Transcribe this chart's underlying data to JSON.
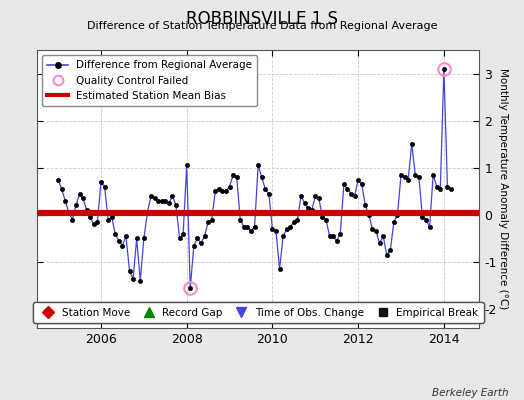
{
  "title": "ROBBINSVILLE 1 S",
  "subtitle": "Difference of Station Temperature Data from Regional Average",
  "ylabel": "Monthly Temperature Anomaly Difference (°C)",
  "bias_value": 0.05,
  "ylim": [
    -2.4,
    3.5
  ],
  "xlim": [
    2004.5,
    2014.83
  ],
  "xticks": [
    2006,
    2008,
    2010,
    2012,
    2014
  ],
  "yticks": [
    -2,
    -1,
    0,
    1,
    2,
    3
  ],
  "bg_color": "#e8e8e8",
  "plot_bg_color": "#ffffff",
  "line_color": "#4444dd",
  "marker_color": "#000000",
  "bias_color": "#cc0000",
  "qc_fail_color": "#ff88cc",
  "watermark": "Berkeley Earth",
  "monthly_data": [
    [
      2005.0,
      0.75
    ],
    [
      2005.083,
      0.55
    ],
    [
      2005.167,
      0.3
    ],
    [
      2005.25,
      0.05
    ],
    [
      2005.333,
      -0.1
    ],
    [
      2005.417,
      0.2
    ],
    [
      2005.5,
      0.45
    ],
    [
      2005.583,
      0.35
    ],
    [
      2005.667,
      0.1
    ],
    [
      2005.75,
      -0.05
    ],
    [
      2005.833,
      -0.2
    ],
    [
      2005.917,
      -0.15
    ],
    [
      2006.0,
      0.7
    ],
    [
      2006.083,
      0.6
    ],
    [
      2006.167,
      -0.1
    ],
    [
      2006.25,
      -0.05
    ],
    [
      2006.333,
      -0.4
    ],
    [
      2006.417,
      -0.55
    ],
    [
      2006.5,
      -0.65
    ],
    [
      2006.583,
      -0.45
    ],
    [
      2006.667,
      -1.2
    ],
    [
      2006.75,
      -1.35
    ],
    [
      2006.833,
      -0.5
    ],
    [
      2006.917,
      -1.4
    ],
    [
      2007.0,
      -0.5
    ],
    [
      2007.083,
      0.05
    ],
    [
      2007.167,
      0.4
    ],
    [
      2007.25,
      0.35
    ],
    [
      2007.333,
      0.3
    ],
    [
      2007.417,
      0.3
    ],
    [
      2007.5,
      0.3
    ],
    [
      2007.583,
      0.25
    ],
    [
      2007.667,
      0.4
    ],
    [
      2007.75,
      0.2
    ],
    [
      2007.833,
      -0.5
    ],
    [
      2007.917,
      -0.4
    ],
    [
      2008.0,
      1.05
    ],
    [
      2008.083,
      -1.55
    ],
    [
      2008.167,
      -0.65
    ],
    [
      2008.25,
      -0.5
    ],
    [
      2008.333,
      -0.6
    ],
    [
      2008.417,
      -0.45
    ],
    [
      2008.5,
      -0.15
    ],
    [
      2008.583,
      -0.1
    ],
    [
      2008.667,
      0.5
    ],
    [
      2008.75,
      0.55
    ],
    [
      2008.833,
      0.5
    ],
    [
      2008.917,
      0.5
    ],
    [
      2009.0,
      0.6
    ],
    [
      2009.083,
      0.85
    ],
    [
      2009.167,
      0.8
    ],
    [
      2009.25,
      -0.1
    ],
    [
      2009.333,
      -0.25
    ],
    [
      2009.417,
      -0.25
    ],
    [
      2009.5,
      -0.35
    ],
    [
      2009.583,
      -0.25
    ],
    [
      2009.667,
      1.05
    ],
    [
      2009.75,
      0.8
    ],
    [
      2009.833,
      0.55
    ],
    [
      2009.917,
      0.45
    ],
    [
      2010.0,
      -0.3
    ],
    [
      2010.083,
      -0.35
    ],
    [
      2010.167,
      -1.15
    ],
    [
      2010.25,
      -0.45
    ],
    [
      2010.333,
      -0.3
    ],
    [
      2010.417,
      -0.25
    ],
    [
      2010.5,
      -0.15
    ],
    [
      2010.583,
      -0.1
    ],
    [
      2010.667,
      0.4
    ],
    [
      2010.75,
      0.25
    ],
    [
      2010.833,
      0.15
    ],
    [
      2010.917,
      0.1
    ],
    [
      2011.0,
      0.4
    ],
    [
      2011.083,
      0.35
    ],
    [
      2011.167,
      -0.05
    ],
    [
      2011.25,
      -0.1
    ],
    [
      2011.333,
      -0.45
    ],
    [
      2011.417,
      -0.45
    ],
    [
      2011.5,
      -0.55
    ],
    [
      2011.583,
      -0.4
    ],
    [
      2011.667,
      0.65
    ],
    [
      2011.75,
      0.55
    ],
    [
      2011.833,
      0.45
    ],
    [
      2011.917,
      0.4
    ],
    [
      2012.0,
      0.75
    ],
    [
      2012.083,
      0.65
    ],
    [
      2012.167,
      0.2
    ],
    [
      2012.25,
      0.0
    ],
    [
      2012.333,
      -0.3
    ],
    [
      2012.417,
      -0.35
    ],
    [
      2012.5,
      -0.6
    ],
    [
      2012.583,
      -0.45
    ],
    [
      2012.667,
      -0.85
    ],
    [
      2012.75,
      -0.75
    ],
    [
      2012.833,
      -0.15
    ],
    [
      2012.917,
      0.0
    ],
    [
      2013.0,
      0.85
    ],
    [
      2013.083,
      0.8
    ],
    [
      2013.167,
      0.75
    ],
    [
      2013.25,
      1.5
    ],
    [
      2013.333,
      0.85
    ],
    [
      2013.417,
      0.8
    ],
    [
      2013.5,
      -0.05
    ],
    [
      2013.583,
      -0.1
    ],
    [
      2013.667,
      -0.25
    ],
    [
      2013.75,
      0.85
    ],
    [
      2013.833,
      0.6
    ],
    [
      2013.917,
      0.55
    ],
    [
      2014.0,
      3.1
    ],
    [
      2014.083,
      0.6
    ],
    [
      2014.167,
      0.55
    ]
  ],
  "qc_fail_points": [
    [
      2008.083,
      -1.55
    ],
    [
      2014.0,
      3.1
    ]
  ],
  "legend1_items": [
    {
      "label": "Difference from Regional Average",
      "color": "#4444dd",
      "type": "line_marker"
    },
    {
      "label": "Quality Control Failed",
      "color": "#ff88cc",
      "type": "circle_open"
    },
    {
      "label": "Estimated Station Mean Bias",
      "color": "#cc0000",
      "type": "line"
    }
  ],
  "legend2_items": [
    {
      "label": "Station Move",
      "color": "#cc0000",
      "marker": "D"
    },
    {
      "label": "Record Gap",
      "color": "#008800",
      "marker": "^"
    },
    {
      "label": "Time of Obs. Change",
      "color": "#4444dd",
      "marker": "v"
    },
    {
      "label": "Empirical Break",
      "color": "#111111",
      "marker": "s"
    }
  ]
}
